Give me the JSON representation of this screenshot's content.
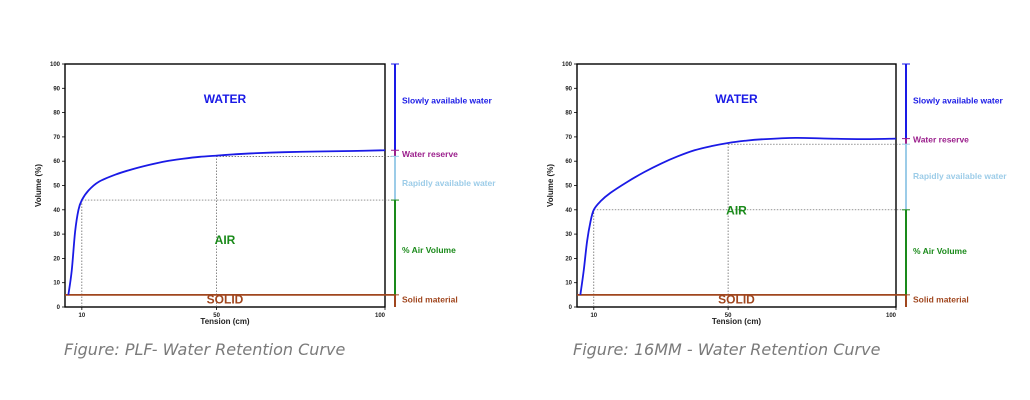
{
  "colors": {
    "curve": "#1a1ae6",
    "water": "#1a1ae6",
    "air": "#1a8a1a",
    "solid": "#a0461e",
    "water_reserve": "#9b1f8c",
    "rapid": "#9ccce8",
    "frame": "#000000",
    "guide": "#555555"
  },
  "chart_data": [
    {
      "type": "line",
      "x": [
        6,
        7,
        8,
        9,
        10,
        12,
        15,
        20,
        25,
        30,
        35,
        40,
        45,
        50,
        55,
        60,
        70,
        80,
        90,
        100
      ],
      "y": [
        5,
        15,
        31,
        40,
        44,
        48,
        51.5,
        54.5,
        56.7,
        58.5,
        60,
        61,
        61.8,
        62.3,
        62.8,
        63.2,
        63.7,
        64,
        64.2,
        64.5
      ],
      "xlabel": "Tension (cm)",
      "ylabel": "Volume (%)",
      "xlim": [
        5,
        100
      ],
      "ylim": [
        0,
        100
      ],
      "xticks": [
        10,
        50,
        100
      ],
      "yticks": [
        0,
        10,
        20,
        30,
        40,
        50,
        60,
        70,
        80,
        90,
        100
      ],
      "guides": {
        "x10_y": 44,
        "x50_y": 62
      },
      "solid_level": 5,
      "grid": false,
      "region_labels": {
        "water": "WATER",
        "air": "AIR",
        "solid": "SOLID"
      },
      "side_labels": [
        {
          "text": "Slowly available water",
          "color_key": "water",
          "y_from": 64.5,
          "y_to": 100,
          "text_y": 85
        },
        {
          "text": "Water reserve",
          "color_key": "water_reserve",
          "y_from": 62,
          "y_to": 64.5,
          "text_y": 63
        },
        {
          "text": "Rapidly available water",
          "color_key": "rapid",
          "y_from": 44,
          "y_to": 62,
          "text_y": 51
        },
        {
          "text": "% Air Volume",
          "color_key": "air",
          "y_from": 5,
          "y_to": 44,
          "text_y": 23.5
        },
        {
          "text": "Solid material",
          "color_key": "solid",
          "y_from": 0,
          "y_to": 5,
          "text_y": 3
        }
      ],
      "caption": "Figure: PLF- Water Retention Curve"
    },
    {
      "type": "line",
      "x": [
        6,
        7,
        8,
        9,
        10,
        12,
        15,
        20,
        25,
        30,
        35,
        40,
        45,
        50,
        55,
        60,
        70,
        80,
        90,
        100
      ],
      "y": [
        5,
        15,
        27,
        35,
        40,
        43.5,
        47,
        51.5,
        55.5,
        59,
        62,
        64.5,
        66.2,
        67.5,
        68.4,
        69,
        69.6,
        69.3,
        69.1,
        69.3
      ],
      "xlabel": "Tension (cm)",
      "ylabel": "Volume (%)",
      "xlim": [
        5,
        100
      ],
      "ylim": [
        0,
        100
      ],
      "xticks": [
        10,
        50,
        100
      ],
      "yticks": [
        0,
        10,
        20,
        30,
        40,
        50,
        60,
        70,
        80,
        90,
        100
      ],
      "guides": {
        "x10_y": 40,
        "x50_y": 67
      },
      "solid_level": 5,
      "grid": false,
      "region_labels": {
        "water": "WATER",
        "air": "AIR",
        "solid": "SOLID"
      },
      "side_labels": [
        {
          "text": "Slowly available water",
          "color_key": "water",
          "y_from": 69.3,
          "y_to": 100,
          "text_y": 85
        },
        {
          "text": "Water reserve",
          "color_key": "water_reserve",
          "y_from": 67,
          "y_to": 69.3,
          "text_y": 69
        },
        {
          "text": "Rapidly available water",
          "color_key": "rapid",
          "y_from": 40,
          "y_to": 67,
          "text_y": 54
        },
        {
          "text": "% Air Volume",
          "color_key": "air",
          "y_from": 5,
          "y_to": 40,
          "text_y": 23
        },
        {
          "text": "Solid material",
          "color_key": "solid",
          "y_from": 0,
          "y_to": 5,
          "text_y": 3
        }
      ],
      "caption": "Figure: 16MM - Water Retention Curve"
    }
  ]
}
